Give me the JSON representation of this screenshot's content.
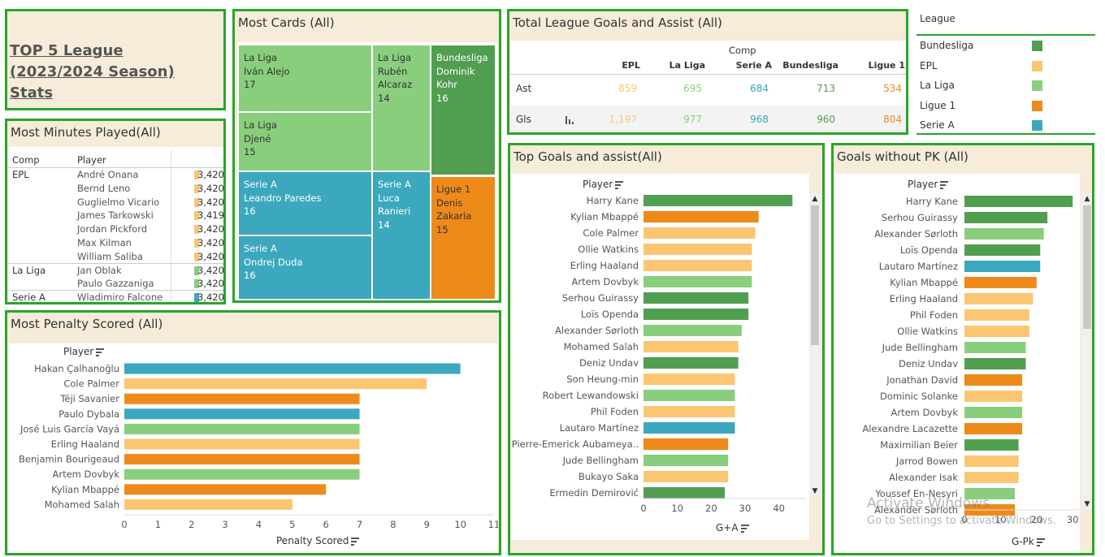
{
  "colors": {
    "Bundesliga": "#519e51",
    "EPL": "#fbc672",
    "La Liga": "#88ce7d",
    "Ligue 1": "#ee8a1a",
    "Serie A": "#3ba8bd"
  },
  "title_panel": {
    "title": "TOP 5 League (2023/2024 Season) Stats"
  },
  "minutes": {
    "title": "Most Minutes Played(All)",
    "col_comp": "Comp",
    "col_player": "Player",
    "rows": [
      {
        "comp": "EPL",
        "player": "André Onana",
        "value": "3,420",
        "league": "EPL"
      },
      {
        "comp": "",
        "player": "Bernd Leno",
        "value": "3,420",
        "league": "EPL"
      },
      {
        "comp": "",
        "player": "Guglielmo Vicario",
        "value": "3,420",
        "league": "EPL"
      },
      {
        "comp": "",
        "player": "James Tarkowski",
        "value": "3,419",
        "league": "EPL"
      },
      {
        "comp": "",
        "player": "Jordan Pickford",
        "value": "3,420",
        "league": "EPL"
      },
      {
        "comp": "",
        "player": "Max Kilman",
        "value": "3,420",
        "league": "EPL"
      },
      {
        "comp": "",
        "player": "William Saliba",
        "value": "3,420",
        "league": "EPL"
      },
      {
        "comp": "La Liga",
        "player": "Jan Oblak",
        "value": "3,420",
        "league": "La Liga"
      },
      {
        "comp": "",
        "player": "Paulo Gazzaniga",
        "value": "3,420",
        "league": "La Liga"
      },
      {
        "comp": "Serie A",
        "player": "Wladimiro Falcone",
        "value": "3,420",
        "league": "Serie A"
      }
    ]
  },
  "cards": {
    "title": "Most Cards (All)",
    "tiles": [
      {
        "league": "La Liga",
        "player": "Iván Alejo",
        "value": "17"
      },
      {
        "league": "La Liga",
        "player": "Rubén Alcaraz",
        "value": "14"
      },
      {
        "league": "Bundesliga",
        "player": "Dominik Kohr",
        "value": "16"
      },
      {
        "league": "La Liga",
        "player": "Djené",
        "value": "15"
      },
      {
        "league": "Serie A",
        "player": "Leandro Paredes",
        "value": "16"
      },
      {
        "league": "Serie A",
        "player": "Luca Ranieri",
        "value": "14"
      },
      {
        "league": "Ligue 1",
        "player": "Denis Zakaria",
        "value": "15"
      },
      {
        "league": "Serie A",
        "player": "Ondrej Duda",
        "value": "16"
      }
    ]
  },
  "goals_assist_table": {
    "title": "Total League Goals and Assist (All)",
    "comp_header": "Comp",
    "columns": [
      "EPL",
      "La Liga",
      "Serie A",
      "Bundesliga",
      "Ligue 1"
    ],
    "rows": [
      {
        "label": "Ast",
        "values": [
          "859",
          "695",
          "684",
          "713",
          "534"
        ]
      },
      {
        "label": "Gls",
        "values": [
          "1,197",
          "977",
          "968",
          "960",
          "804"
        ]
      }
    ]
  },
  "legend": {
    "title": "League",
    "items": [
      "Bundesliga",
      "EPL",
      "La Liga",
      "Ligue 1",
      "Serie A"
    ]
  },
  "penalty": {
    "title": "Most Penalty Scored (All)",
    "player_header": "Player",
    "axis_label": "Penalty Scored"
  },
  "top_ga": {
    "title": "Top Goals and assist(All)",
    "player_header": "Player",
    "axis_label": "G+A"
  },
  "gnpk": {
    "title": "Goals without PK (All)",
    "player_header": "Player",
    "axis_label": "G-Pk"
  },
  "watermark": {
    "line1": "Activate Windows",
    "line2": "Go to Settings to activate Windows."
  },
  "chart_data": [
    {
      "type": "bar",
      "orientation": "horizontal",
      "title": "Most Penalty Scored (All)",
      "xlabel": "Penalty Scored",
      "ylabel": "Player",
      "xlim": [
        0,
        11
      ],
      "ticks": [
        0,
        1,
        2,
        3,
        4,
        5,
        6,
        7,
        8,
        9,
        10,
        11
      ],
      "categories": [
        "Hakan Çalhanoğlu",
        "Cole Palmer",
        "Téji Savanier",
        "Paulo Dybala",
        "José Luis García Vayá",
        "Erling Haaland",
        "Benjamin Bourigeaud",
        "Artem Dovbyk",
        "Kylian Mbappé",
        "Mohamed Salah"
      ],
      "values": [
        10,
        9,
        7,
        7,
        7,
        7,
        7,
        7,
        6,
        5
      ],
      "leagues": [
        "Serie A",
        "EPL",
        "Ligue 1",
        "Serie A",
        "La Liga",
        "EPL",
        "Ligue 1",
        "La Liga",
        "Ligue 1",
        "EPL"
      ]
    },
    {
      "type": "bar",
      "orientation": "horizontal",
      "title": "Top Goals and assist(All)",
      "xlabel": "G+A",
      "ylabel": "Player",
      "xlim": [
        0,
        48
      ],
      "ticks": [
        0,
        10,
        20,
        30,
        40
      ],
      "categories": [
        "Harry Kane",
        "Kylian Mbappé",
        "Cole Palmer",
        "Ollie Watkins",
        "Erling Haaland",
        "Artem Dovbyk",
        "Serhou Guirassy",
        "Loïs Openda",
        "Alexander Sørloth",
        "Mohamed Salah",
        "Deniz Undav",
        "Son Heung-min",
        "Robert Lewandowski",
        "Phil Foden",
        "Lautaro Martínez",
        "Pierre-Emerick Aubameya..",
        "Jude Bellingham",
        "Bukayo Saka",
        "Ermedin Demirović"
      ],
      "values": [
        44,
        34,
        33,
        32,
        32,
        32,
        31,
        31,
        29,
        28,
        28,
        27,
        27,
        27,
        27,
        25,
        25,
        25,
        24
      ],
      "leagues": [
        "Bundesliga",
        "Ligue 1",
        "EPL",
        "EPL",
        "EPL",
        "La Liga",
        "Bundesliga",
        "Bundesliga",
        "La Liga",
        "EPL",
        "Bundesliga",
        "EPL",
        "La Liga",
        "EPL",
        "Serie A",
        "Ligue 1",
        "La Liga",
        "EPL",
        "Bundesliga"
      ]
    },
    {
      "type": "bar",
      "orientation": "horizontal",
      "title": "Goals without PK (All)",
      "xlabel": "G-Pk",
      "ylabel": "Player",
      "xlim": [
        0,
        34
      ],
      "ticks": [
        0,
        10,
        20,
        30
      ],
      "categories": [
        "Harry Kane",
        "Serhou Guirassy",
        "Alexander Sørloth",
        "Loïs Openda",
        "Lautaro Martínez",
        "Kylian Mbappé",
        "Erling Haaland",
        "Phil Foden",
        "Ollie Watkins",
        "Jude Bellingham",
        "Deniz Undav",
        "Jonathan David",
        "Dominic Solanke",
        "Artem Dovbyk",
        "Alexandre Lacazette",
        "Maximilian Beier",
        "Jarrod Bowen",
        "Alexander Isak",
        "Youssef En-Nesyri",
        "Alexander Sørloth"
      ],
      "values": [
        30,
        23,
        22,
        21,
        21,
        20,
        19,
        18,
        18,
        17,
        17,
        16,
        16,
        16,
        16,
        15,
        15,
        15,
        14,
        14
      ],
      "leagues": [
        "Bundesliga",
        "Bundesliga",
        "La Liga",
        "Bundesliga",
        "Serie A",
        "Ligue 1",
        "EPL",
        "EPL",
        "EPL",
        "La Liga",
        "Bundesliga",
        "Ligue 1",
        "EPL",
        "La Liga",
        "Ligue 1",
        "Bundesliga",
        "EPL",
        "EPL",
        "La Liga",
        "Ligue 1"
      ]
    }
  ]
}
